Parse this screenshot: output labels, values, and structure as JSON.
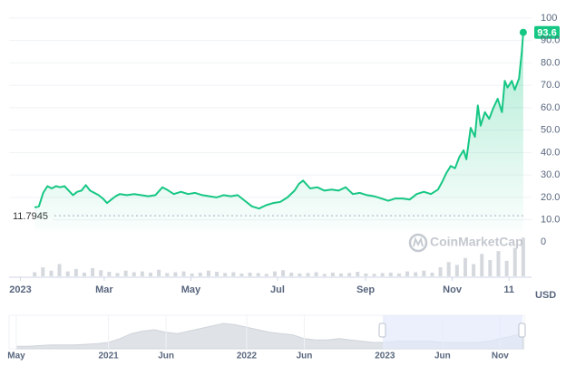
{
  "chart_data": {
    "type": "line",
    "color": "#16c784",
    "currency": "USD",
    "watermark": "CoinMarketCap",
    "open_value": 11.7945,
    "x": [
      10,
      13,
      16,
      19,
      22,
      25,
      28,
      31,
      34,
      37,
      40,
      43,
      46,
      49,
      52,
      55,
      58,
      61,
      64,
      67,
      70,
      75,
      80,
      85,
      90,
      95,
      100,
      103,
      108,
      113,
      118,
      123,
      128,
      133,
      138,
      143,
      148,
      153,
      158,
      163,
      168,
      173,
      178,
      183,
      188,
      193,
      196,
      199,
      204,
      209,
      214,
      219,
      224,
      229,
      234,
      239,
      244,
      249,
      254,
      259,
      264,
      269,
      274,
      279,
      284,
      289,
      294,
      297,
      300,
      303,
      306,
      309,
      312,
      314,
      317,
      320,
      322,
      324,
      327,
      330,
      333,
      336,
      339,
      341,
      343,
      346,
      348,
      351,
      353,
      354
    ],
    "values": [
      15.5,
      16,
      22,
      25,
      24,
      25,
      24.5,
      25,
      23,
      21,
      22.5,
      23,
      25.5,
      23,
      22,
      21,
      19.5,
      17.5,
      19,
      20.5,
      21.5,
      21,
      21.5,
      21,
      20.5,
      21,
      24.5,
      23.5,
      21.5,
      22.5,
      21.5,
      22,
      21,
      20.5,
      20,
      21,
      20.5,
      21,
      18.5,
      16,
      15,
      16.5,
      17.5,
      18,
      20,
      23,
      26,
      27.5,
      24,
      24.5,
      23,
      23.5,
      23,
      24.5,
      21.5,
      22,
      21,
      20.5,
      19.5,
      18.5,
      19.5,
      19.5,
      19,
      21.5,
      22.5,
      21.5,
      23.5,
      27,
      31,
      34,
      33,
      38,
      41,
      37,
      51,
      47,
      61,
      52,
      58,
      55,
      60,
      64,
      58,
      72,
      69,
      72,
      68,
      73,
      85,
      93.6
    ],
    "xlim": [
      -8,
      356
    ],
    "xticks": [
      {
        "value": 0,
        "label": "2023"
      },
      {
        "value": 59,
        "label": "Mar"
      },
      {
        "value": 120,
        "label": "May"
      },
      {
        "value": 181,
        "label": "Jul"
      },
      {
        "value": 243,
        "label": "Sep"
      },
      {
        "value": 304,
        "label": "Nov"
      },
      {
        "value": 344,
        "label": "11"
      }
    ],
    "ylim": [
      5,
      106
    ],
    "yticks": [
      {
        "value": 10,
        "label": "10.0"
      },
      {
        "value": 20,
        "label": "20.0"
      },
      {
        "value": 30,
        "label": "30.0"
      },
      {
        "value": 40,
        "label": "40.0"
      },
      {
        "value": 50,
        "label": "50.0"
      },
      {
        "value": 60,
        "label": "60.0"
      },
      {
        "value": 70,
        "label": "70.0"
      },
      {
        "value": 80,
        "label": "80.0"
      },
      {
        "value": 90,
        "label": "90.0"
      },
      100
    ],
    "grid": true,
    "volume": {
      "color": "#d5d9de",
      "ylim": [
        0,
        100
      ],
      "yticks": [
        0
      ],
      "values": [
        10,
        22,
        14,
        30,
        12,
        18,
        9,
        20,
        15,
        11,
        8,
        14,
        10,
        12,
        9,
        16,
        8,
        10,
        12,
        7,
        9,
        14,
        11,
        8,
        10,
        7,
        9,
        8,
        6,
        12,
        15,
        9,
        7,
        8,
        10,
        6,
        9,
        7,
        8,
        11,
        7,
        6,
        8,
        9,
        7,
        12,
        10,
        14,
        9,
        22,
        35,
        28,
        45,
        30,
        55,
        40,
        62,
        38,
        70,
        95
      ]
    },
    "navigator": {
      "color": "#dfe3e8",
      "xlim": [
        -0.63,
        44.1
      ],
      "ylim": [
        0,
        25
      ],
      "xticks": [
        {
          "value": 0,
          "label": "May"
        },
        {
          "value": 8,
          "label": "2021"
        },
        {
          "value": 13,
          "label": "Jun"
        },
        {
          "value": 20,
          "label": "2022"
        },
        {
          "value": 25,
          "label": "Jun"
        },
        {
          "value": 32,
          "label": "2023"
        },
        {
          "value": 37,
          "label": "Jun"
        },
        {
          "value": 42,
          "label": "Nov"
        }
      ],
      "values": [
        2,
        2,
        2.5,
        3,
        3,
        3,
        3.5,
        4,
        5,
        8,
        12,
        14,
        15,
        13,
        12,
        14,
        16,
        18,
        20,
        19,
        17,
        15,
        13,
        12,
        11,
        8,
        7,
        7,
        8,
        7,
        6,
        5,
        5,
        6,
        6,
        6,
        6,
        5,
        5,
        5,
        5,
        6,
        8,
        10,
        12
      ]
    }
  }
}
